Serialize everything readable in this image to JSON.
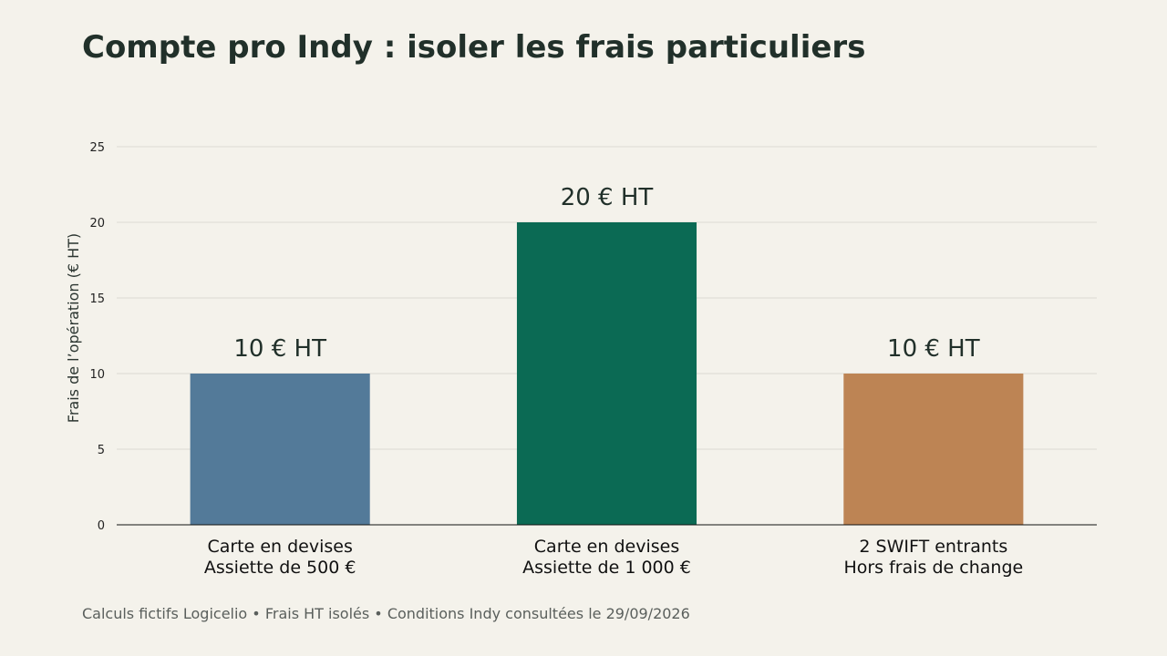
{
  "header": {
    "title": "Compte pro Indy : isoler les frais particuliers"
  },
  "footer": {
    "note": "Calculs fictifs Logicelio • Frais HT isolés • Conditions Indy consultées le 29/09/2026"
  },
  "chart_data": {
    "type": "bar",
    "title": "",
    "xlabel": "",
    "ylabel": "Frais de l’opération (€ HT)",
    "ylim": [
      0,
      25
    ],
    "yticks": [
      0,
      5,
      10,
      15,
      20,
      25
    ],
    "grid": true,
    "categories": [
      [
        "Carte en devises",
        "Assiette de 500 €"
      ],
      [
        "Carte en devises",
        "Assiette de 1 000 €"
      ],
      [
        "2 SWIFT entrants",
        "Hors frais de change"
      ]
    ],
    "values": [
      10,
      20,
      10
    ],
    "data_labels": [
      "10 € HT",
      "20 € HT",
      "10 € HT"
    ],
    "colors": [
      "#537a99",
      "#0b6a54",
      "#bd8454"
    ]
  }
}
